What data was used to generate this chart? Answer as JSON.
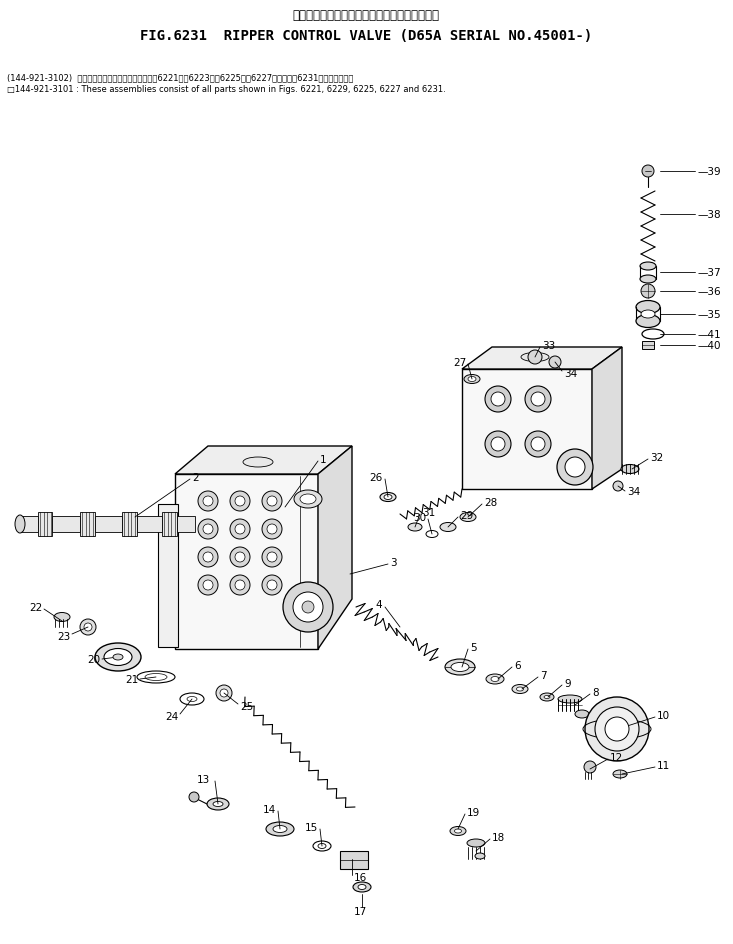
{
  "title_jp": "リッパ　コントロール　バルブ　　　適用号機",
  "title_en": "FIG.6231  RIPPER CONTROL VALVE (D65A SERIAL NO.45001-)",
  "note1": "(144-921-3102)  これらのアセンブリの構成部品は、6221図、6223図、6225図、6227図および、6231図を含みます。",
  "note2": "□144-921-3101 : These assemblies consist of all parts shown in Figs. 6221, 6229, 6225, 6227 and 6231.",
  "bg_color": "#ffffff"
}
